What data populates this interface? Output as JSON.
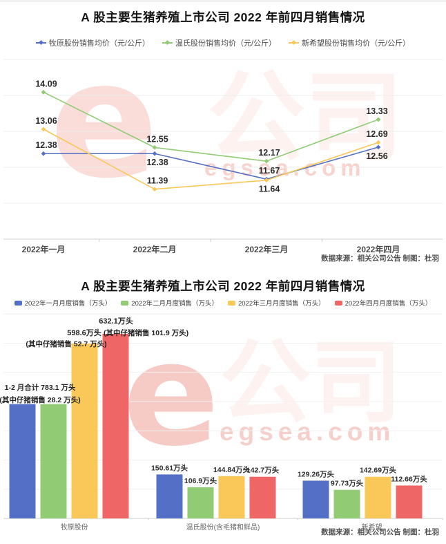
{
  "watermark": {
    "logo": "e",
    "brand": "公司",
    "site": "egsea.com",
    "color": "#e4543f"
  },
  "chart_data": [
    {
      "type": "line",
      "title": "A 股主要生猪养殖上市公司 2022 年前四月销售情况",
      "categories": [
        "2022年一月",
        "2022年二月",
        "2022年三月",
        "2022年四月"
      ],
      "series": [
        {
          "name": "牧原股份销售均价（元/公斤）",
          "color": "#5470c6",
          "values": [
            12.38,
            12.38,
            11.67,
            12.56
          ],
          "label_below": [
            false,
            true,
            false,
            true
          ]
        },
        {
          "name": "温氏股份销售均价（元/公斤）",
          "color": "#91cc75",
          "values": [
            14.09,
            12.55,
            12.17,
            13.33
          ],
          "label_below": [
            false,
            false,
            false,
            false
          ]
        },
        {
          "name": "新希望股份销售均价（元/公斤）",
          "color": "#fac858",
          "values": [
            13.06,
            11.39,
            11.64,
            12.69
          ],
          "label_below": [
            false,
            false,
            true,
            false
          ]
        }
      ],
      "ylim": [
        10,
        15
      ],
      "grid_step": 1,
      "grid": true,
      "legend_position": "top",
      "source": "数据来源：相关公司公告 制图：杜羽"
    },
    {
      "type": "bar",
      "title": "A 股主要生猪养殖上市公司 2022 年前四月销售情况",
      "categories": [
        "牧原股份",
        "温氏股份(含毛猪和鲜品)",
        "新希望"
      ],
      "series": [
        {
          "name": "2022年一月月度销售（万头）",
          "color": "#5470c6",
          "values": [
            391.55,
            150.61,
            129.26
          ],
          "labels": [
            "",
            "150.61万头",
            "129.26万头"
          ]
        },
        {
          "name": "2022年二月月度销售（万头）",
          "color": "#91cc75",
          "values": [
            391.55,
            106.9,
            97.73
          ],
          "labels": [
            "",
            "106.9万头",
            "97.73万头"
          ]
        },
        {
          "name": "2022年三月月度销售（万头）",
          "color": "#fac858",
          "values": [
            598.6,
            144.84,
            142.69
          ],
          "labels": [
            "",
            "144.84万头",
            "142.69万头"
          ]
        },
        {
          "name": "2022年四月月度销售（万头）",
          "color": "#ee6666",
          "values": [
            632.1,
            142.7,
            112.66
          ],
          "labels": [
            "",
            "142.7万头",
            "112.66万头"
          ]
        }
      ],
      "ylim": [
        0,
        700
      ],
      "grid_step": 100,
      "grid": true,
      "legend_position": "top",
      "annotations": [
        {
          "text": "632.1万头"
        },
        {
          "text": "(其中仔猪销售 101.9 万头)"
        },
        {
          "text": "598.6万头"
        },
        {
          "text": "(其中仔猪销售 52.7 万头)"
        },
        {
          "text": "1-2 月合计 783.1 万头"
        },
        {
          "text": "(其中仔猪销售 28.2 万头)"
        }
      ],
      "source": "数据来源：相关公司公告 制图：杜羽"
    }
  ]
}
